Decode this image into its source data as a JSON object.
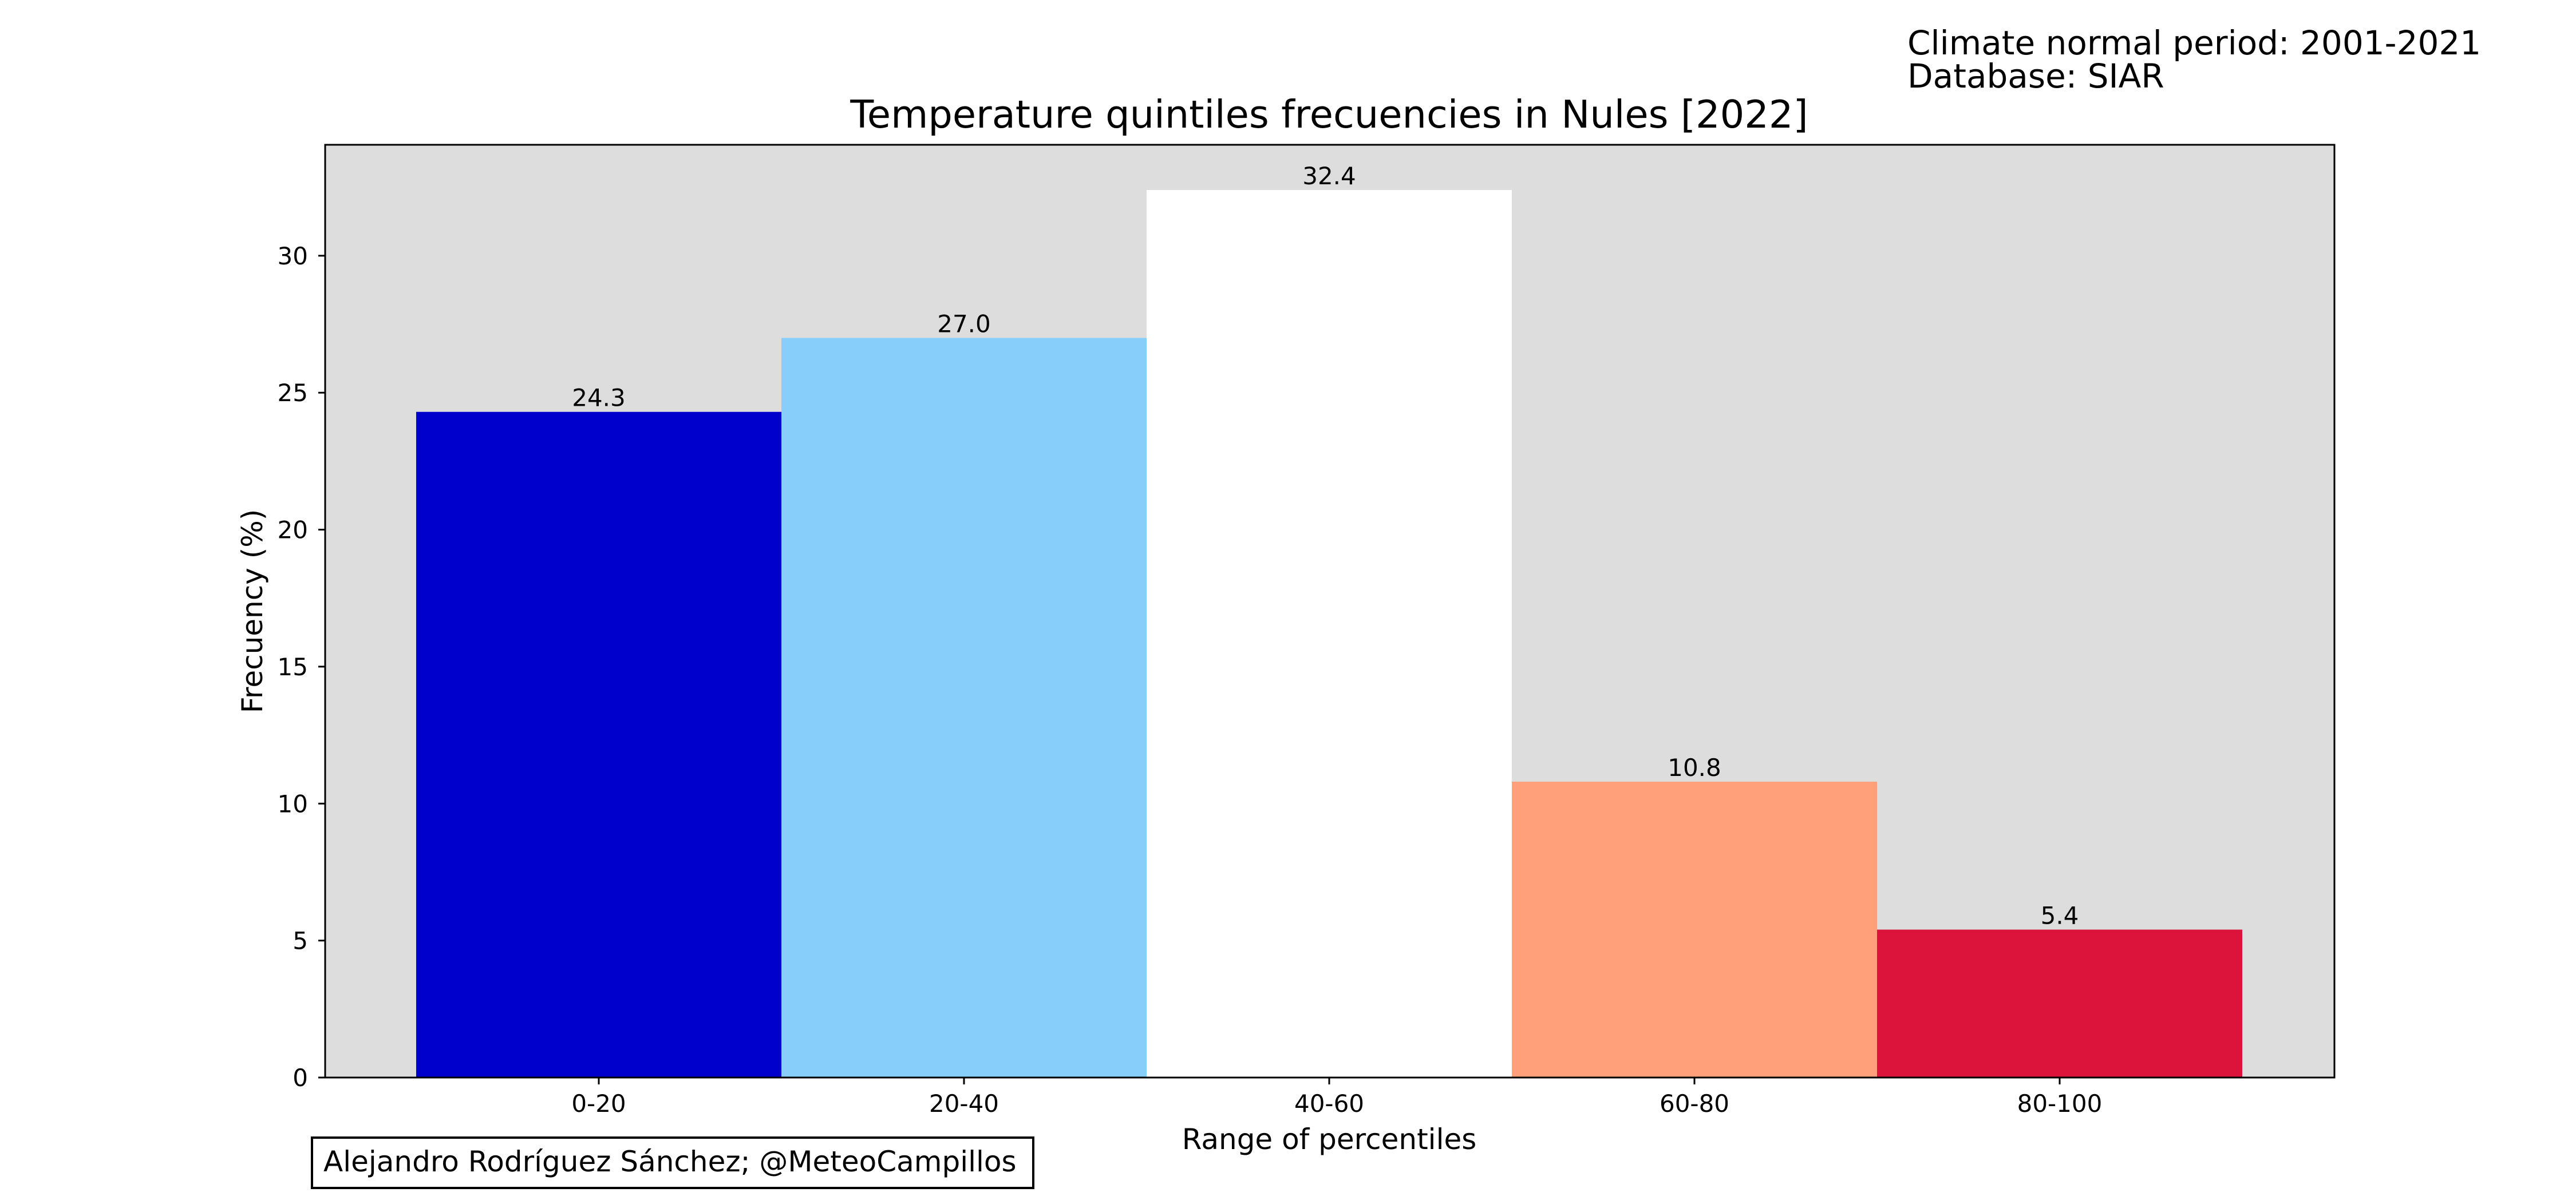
{
  "meta": {
    "period_text": "Climate normal period: 2001-2021",
    "database_text": "Database: SIAR"
  },
  "credit": "Alejandro Rodríguez Sánchez; @MeteoCampillos",
  "chart_data": {
    "type": "bar",
    "title": "Temperature quintiles frecuencies in Nules [2022]",
    "xlabel": "Range of percentiles",
    "ylabel": "Frecuency (%)",
    "categories": [
      "0-20",
      "20-40",
      "40-60",
      "60-80",
      "80-100"
    ],
    "values": [
      24.3,
      27.0,
      32.4,
      10.8,
      5.4
    ],
    "value_labels": [
      "24.3",
      "27.0",
      "32.4",
      "10.8",
      "5.4"
    ],
    "colors": [
      "#0000cd",
      "#87cefa",
      "#ffffff",
      "#ffa07a",
      "#dc143c"
    ],
    "ylim": [
      0,
      34.05
    ],
    "yticks": [
      0,
      5,
      10,
      15,
      20,
      25,
      30
    ],
    "grid": false,
    "legend": "none",
    "plot_background": "#dddddd"
  }
}
